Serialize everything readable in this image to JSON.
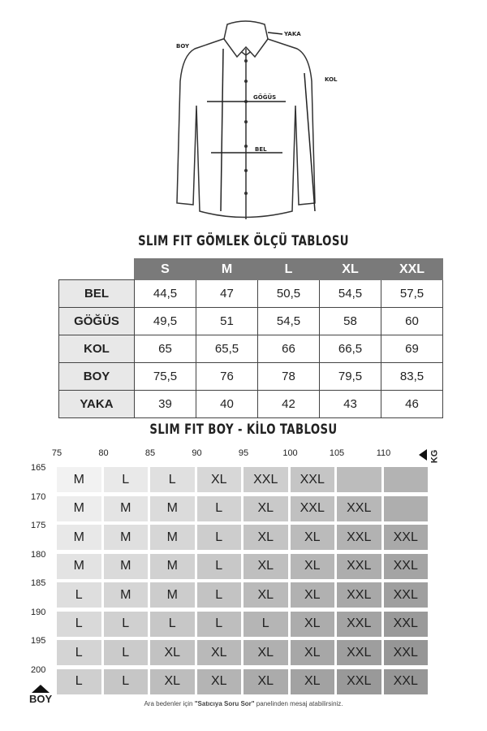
{
  "diagram": {
    "labels": {
      "yaka": "YAKA",
      "boy": "BOY",
      "kol": "KOL",
      "gogus": "GÖĞÜS",
      "bel": "BEL"
    }
  },
  "size_table": {
    "title": "SLIM FIT GÖMLEK ÖLÇÜ TABLOSU",
    "columns": [
      "S",
      "M",
      "L",
      "XL",
      "XXL"
    ],
    "rows": [
      {
        "label": "BEL",
        "values": [
          "44,5",
          "47",
          "50,5",
          "54,5",
          "57,5"
        ]
      },
      {
        "label": "GÖĞÜS",
        "values": [
          "49,5",
          "51",
          "54,5",
          "58",
          "60"
        ]
      },
      {
        "label": "KOL",
        "values": [
          "65",
          "65,5",
          "66",
          "66,5",
          "69"
        ]
      },
      {
        "label": "BOY",
        "values": [
          "75,5",
          "76",
          "78",
          "79,5",
          "83,5"
        ]
      },
      {
        "label": "YAKA",
        "values": [
          "39",
          "40",
          "42",
          "43",
          "46"
        ]
      }
    ]
  },
  "boy_kilo": {
    "title": "SLIM FIT BOY - KİLO TABLOSU",
    "kg_label": "KG",
    "boy_label": "BOY",
    "kg_ticks": [
      "75",
      "80",
      "85",
      "90",
      "95",
      "100",
      "105",
      "110"
    ],
    "boy_ticks": [
      "165",
      "170",
      "175",
      "180",
      "185",
      "190",
      "195",
      "200"
    ],
    "rows": [
      [
        "M",
        "L",
        "L",
        "XL",
        "XXL",
        "XXL",
        "",
        ""
      ],
      [
        "M",
        "M",
        "M",
        "L",
        "XL",
        "XXL",
        "XXL",
        ""
      ],
      [
        "M",
        "M",
        "M",
        "L",
        "XL",
        "XL",
        "XXL",
        "XXL"
      ],
      [
        "M",
        "M",
        "M",
        "L",
        "XL",
        "XL",
        "XXL",
        "XXL"
      ],
      [
        "L",
        "M",
        "M",
        "L",
        "XL",
        "XL",
        "XXL",
        "XXL"
      ],
      [
        "L",
        "L",
        "L",
        "L",
        "L",
        "XL",
        "XXL",
        "XXL"
      ],
      [
        "L",
        "L",
        "XL",
        "XL",
        "XL",
        "XL",
        "XXL",
        "XXL"
      ],
      [
        "L",
        "L",
        "XL",
        "XL",
        "XL",
        "XL",
        "XXL",
        "XXL"
      ]
    ],
    "note_pre": "Ara bedenler için ",
    "note_bold": "\"Satıcıya Soru Sor\"",
    "note_post": " panelinden mesaj atabilirsiniz."
  }
}
